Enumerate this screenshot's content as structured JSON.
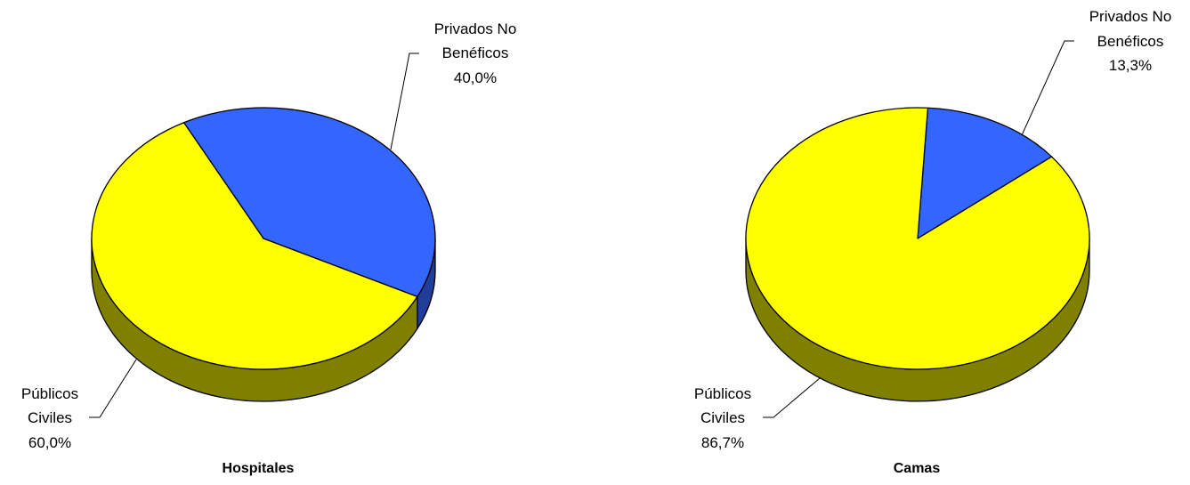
{
  "chart_data": [
    {
      "type": "pie",
      "title": "Hospitales",
      "slices": [
        {
          "label": [
            "Privados No",
            "Benéficos"
          ],
          "percent_label": "40,0%",
          "value": 40.0,
          "color": "#3366ff",
          "side_color": "#1f3d99"
        },
        {
          "label": [
            "Públicos",
            "Civiles"
          ],
          "percent_label": "60,0%",
          "value": 60.0,
          "color": "#ffff00",
          "side_color": "#808000"
        }
      ]
    },
    {
      "type": "pie",
      "title": "Camas",
      "slices": [
        {
          "label": [
            "Privados No",
            "Benéficos"
          ],
          "percent_label": "13,3%",
          "value": 13.3,
          "color": "#3366ff",
          "side_color": "#1f3d99"
        },
        {
          "label": [
            "Públicos",
            "Civiles"
          ],
          "percent_label": "86,7%",
          "value": 86.7,
          "color": "#ffff00",
          "side_color": "#808000"
        }
      ]
    }
  ]
}
